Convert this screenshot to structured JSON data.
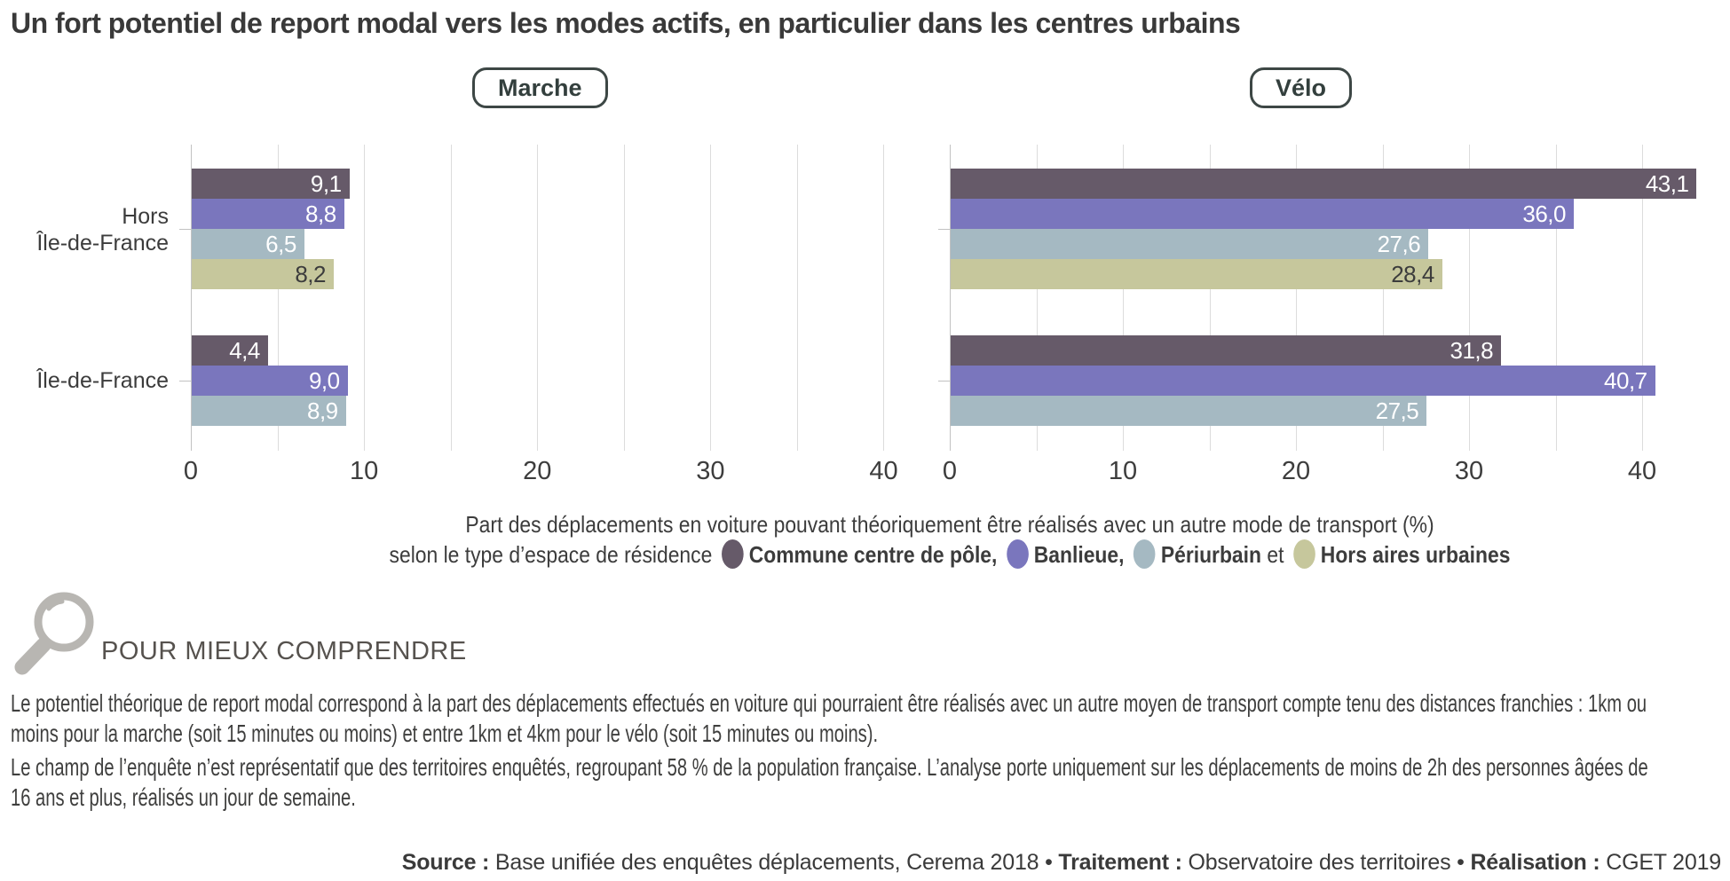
{
  "title": "Un fort potentiel de report modal vers les modes actifs, en particulier dans les centres urbains",
  "series_colors": {
    "Commune centre de pôle": "#665a69",
    "Banlieue": "#7a76bd",
    "Périurbain": "#a5b9c2",
    "Hors aires urbaines": "#c6c79c"
  },
  "series_text_colors": {
    "Commune centre de pôle": "#ffffff",
    "Banlieue": "#ffffff",
    "Périurbain": "#ffffff",
    "Hors aires urbaines": "#3c3c3c"
  },
  "row_labels": [
    [
      "Hors",
      "Île-de-France"
    ],
    [
      "Île-de-France"
    ]
  ],
  "chart_data": [
    {
      "type": "bar",
      "orientation": "horizontal",
      "title": "Marche",
      "categories": [
        "Hors Île-de-France",
        "Île-de-France"
      ],
      "series": [
        {
          "name": "Commune centre de pôle",
          "values": [
            9.1,
            4.4
          ]
        },
        {
          "name": "Banlieue",
          "values": [
            8.8,
            9.0
          ]
        },
        {
          "name": "Périurbain",
          "values": [
            6.5,
            8.9
          ]
        },
        {
          "name": "Hors aires urbaines",
          "values": [
            8.2,
            null
          ]
        }
      ],
      "xlim": [
        0,
        41
      ],
      "x_tick_labels": [
        "0",
        "10",
        "20",
        "30",
        "40"
      ],
      "gridline_step": 5,
      "grid": true,
      "value_labels_decimal_comma": true
    },
    {
      "type": "bar",
      "orientation": "horizontal",
      "title": "Vélo",
      "categories": [
        "Hors Île-de-France",
        "Île-de-France"
      ],
      "series": [
        {
          "name": "Commune centre de pôle",
          "values": [
            43.1,
            31.8
          ]
        },
        {
          "name": "Banlieue",
          "values": [
            36.0,
            40.7
          ]
        },
        {
          "name": "Périurbain",
          "values": [
            27.6,
            27.5
          ]
        },
        {
          "name": "Hors aires urbaines",
          "values": [
            28.4,
            null
          ]
        }
      ],
      "xlim": [
        0,
        44
      ],
      "x_tick_labels": [
        "0",
        "10",
        "20",
        "30",
        "40"
      ],
      "gridline_step": 5,
      "grid": true,
      "value_labels_decimal_comma": true
    }
  ],
  "caption": {
    "line1": "Part des déplacements en voiture pouvant théoriquement être réalisés avec un autre mode de transport (%)",
    "line2_prefix": "selon le type d’espace de résidence",
    "legend_items": [
      {
        "label": "Commune centre de pôle,",
        "series": "Commune centre de pôle",
        "after": ""
      },
      {
        "label": "Banlieue,",
        "series": "Banlieue",
        "after": ""
      },
      {
        "label": "Périurbain",
        "series": "Périurbain",
        "after": " et"
      },
      {
        "label": "Hors aires urbaines",
        "series": "Hors aires urbaines",
        "after": ""
      }
    ]
  },
  "explainer": {
    "heading": "POUR MIEUX COMPRENDRE",
    "icon": "magnifier-icon",
    "paragraphs": [
      "Le potentiel théorique de report modal correspond à la part des déplacements effectués en voiture qui pourraient être réalisés avec un autre moyen de transport compte tenu des distances franchies : 1km ou moins pour la marche (soit 15 minutes ou moins) et entre 1km et 4km pour le vélo (soit 15 minutes ou moins).",
      "Le champ de l’enquête n’est représentatif que des territoires enquêtés, regroupant 58 % de la population française. L’analyse porte uniquement sur les déplacements de moins de 2h des personnes âgées de 16 ans et plus, réalisés un jour de semaine."
    ]
  },
  "source_line": {
    "segments": [
      {
        "text": "Source :",
        "bold": true
      },
      {
        "text": " Base unifiée des enquêtes déplacements, Cerema 2018 • ",
        "bold": false
      },
      {
        "text": "Traitement :",
        "bold": true
      },
      {
        "text": " Observatoire des territoires • ",
        "bold": false
      },
      {
        "text": "Réalisation :",
        "bold": true
      },
      {
        "text": " CGET 2019",
        "bold": false
      }
    ]
  }
}
